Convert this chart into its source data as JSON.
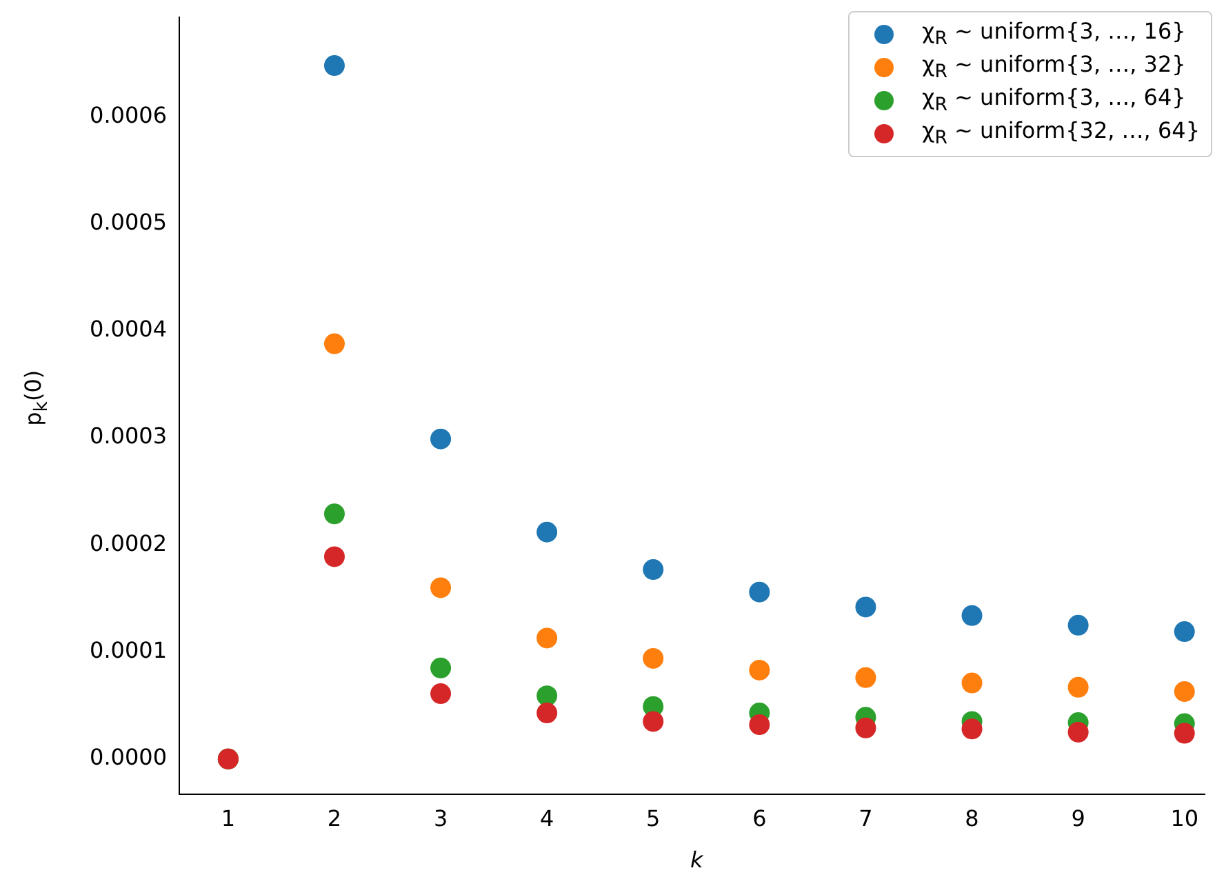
{
  "chart_data": {
    "type": "scatter",
    "xlabel": "k",
    "ylabel": "p$_{k}$(0)",
    "x": [
      1,
      2,
      3,
      4,
      5,
      6,
      7,
      8,
      9,
      10
    ],
    "series": [
      {
        "name": "χ$_{R}$ ∼  uniform{3, …, 16}",
        "color": "#1f77b4",
        "values": [
          0,
          0.000648,
          0.000299,
          0.000212,
          0.000177,
          0.000156,
          0.000142,
          0.000134,
          0.000125,
          0.000119
        ]
      },
      {
        "name": "χ$_{R}$ ∼  uniform{3, …, 32}",
        "color": "#ff7f0e",
        "values": [
          0,
          0.000388,
          0.00016,
          0.000113,
          9.4e-05,
          8.3e-05,
          7.6e-05,
          7.1e-05,
          6.7e-05,
          6.3e-05
        ]
      },
      {
        "name": "χ$_{R}$ ∼  uniform{3, …, 64}",
        "color": "#2ca02c",
        "values": [
          0,
          0.000229,
          8.5e-05,
          5.9e-05,
          4.9e-05,
          4.3e-05,
          3.9e-05,
          3.5e-05,
          3.4e-05,
          3.3e-05
        ]
      },
      {
        "name": "χ$_{R}$ ∼  uniform{32, …, 64}",
        "color": "#d62728",
        "values": [
          0,
          0.000189,
          6.1e-05,
          4.3e-05,
          3.5e-05,
          3.2e-05,
          2.9e-05,
          2.8e-05,
          2.5e-05,
          2.4e-05
        ]
      }
    ],
    "xlim": [
      0.54,
      10.19
    ],
    "xticks": [
      1,
      2,
      3,
      4,
      5,
      6,
      7,
      8,
      9,
      10
    ],
    "ylim": [
      -3.3e-05,
      0.000693
    ],
    "yticks": [
      {
        "value": 0,
        "label": "0.0000"
      },
      {
        "value": 0.0001,
        "label": "0.0001"
      },
      {
        "value": 0.0002,
        "label": "0.0002"
      },
      {
        "value": 0.0003,
        "label": "0.0003"
      },
      {
        "value": 0.0004,
        "label": "0.0004"
      },
      {
        "value": 0.0005,
        "label": "0.0005"
      },
      {
        "value": 0.0006,
        "label": "0.0006"
      }
    ],
    "marker": "circle",
    "grid": false,
    "legend": "top right"
  }
}
